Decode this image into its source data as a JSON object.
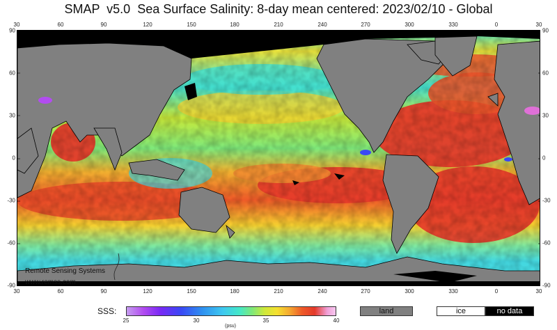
{
  "title": "SMAP  v5.0  Sea Surface Salinity: 8-day mean centered: 2023/02/10 - Global",
  "lon_ticks": [
    "30",
    "60",
    "90",
    "120",
    "150",
    "180",
    "210",
    "240",
    "270",
    "300",
    "330",
    "0",
    "30"
  ],
  "lat_ticks": [
    "90",
    "60",
    "30",
    "0",
    "-30",
    "-60",
    "-90"
  ],
  "credit": {
    "org": "Remote Sensing Systems",
    "url": "www.remss.com"
  },
  "legend": {
    "label": "SSS:",
    "ticks": [
      "25",
      "30",
      "35",
      "40"
    ],
    "unit": "(psu)",
    "land": "land",
    "ice": "ice",
    "no_data": "no data"
  },
  "colors": {
    "land": "#808080",
    "ice": "#ffffff",
    "no_data": "#000000",
    "fresh": "#3ec8f0",
    "mid": "#7ee87a",
    "salty": "#e43a2a"
  }
}
